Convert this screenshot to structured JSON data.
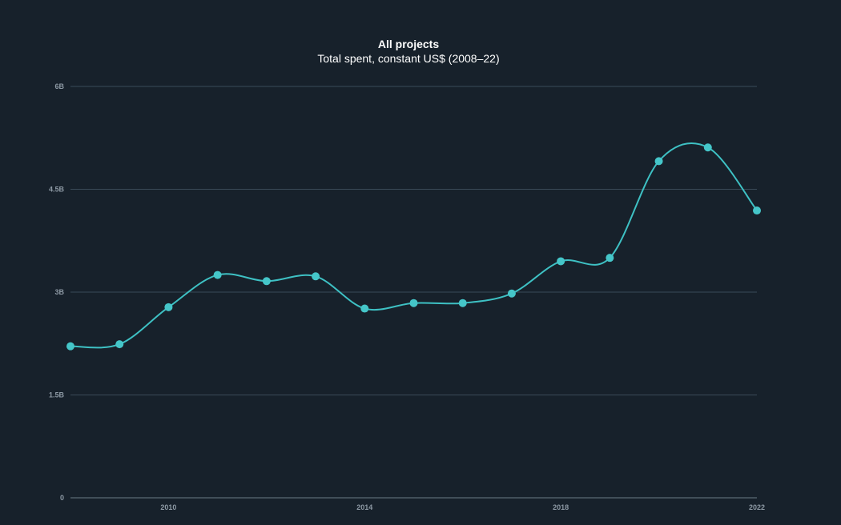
{
  "chart_data": {
    "type": "line",
    "title": "All projects",
    "subtitle": "Total spent, constant US$ (2008–22)",
    "xlabel": "",
    "ylabel": "",
    "x": [
      2008,
      2009,
      2010,
      2011,
      2012,
      2013,
      2014,
      2015,
      2016,
      2017,
      2018,
      2019,
      2020,
      2021,
      2022
    ],
    "series": [
      {
        "name": "Total spent",
        "values": [
          2.21,
          2.24,
          2.78,
          3.25,
          3.16,
          3.23,
          2.76,
          2.84,
          2.84,
          2.98,
          3.45,
          3.5,
          4.91,
          5.11,
          4.19
        ]
      }
    ],
    "ylim": [
      0,
      6
    ],
    "xlim": [
      2008,
      2022
    ],
    "y_ticks": [
      {
        "value": 0,
        "label": "0"
      },
      {
        "value": 1.5,
        "label": "1.5B"
      },
      {
        "value": 3,
        "label": "3B"
      },
      {
        "value": 4.5,
        "label": "4.5B"
      },
      {
        "value": 6,
        "label": "6B"
      }
    ],
    "x_ticks": [
      {
        "value": 2010,
        "label": "2010"
      },
      {
        "value": 2014,
        "label": "2014"
      },
      {
        "value": 2018,
        "label": "2018"
      },
      {
        "value": 2022,
        "label": "2022"
      }
    ],
    "grid": true,
    "legend": "none",
    "colors": {
      "background": "#17212b",
      "line": "#3ec1c4",
      "marker": "#45c6c9"
    }
  }
}
